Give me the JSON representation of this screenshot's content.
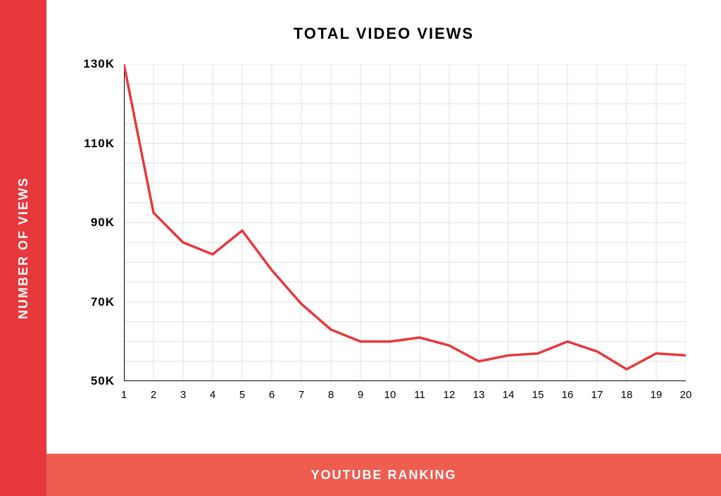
{
  "chart": {
    "type": "line",
    "title": "TOTAL VIDEO VIEWS",
    "title_fontsize": 22,
    "xlabel": "YOUTUBE RANKING",
    "ylabel": "NUMBER OF VIEWS",
    "label_fontsize": 18,
    "label_color": "#ffffff",
    "sidebar_color": "#e7383c",
    "bottombar_color": "#ef5c50",
    "background_color": "#ffffff",
    "grid_color": "#e0e0e0",
    "axis_color": "#000000",
    "axis_width": 2,
    "line_color": "#e7383c",
    "line_width": 3.5,
    "xlim": [
      1,
      20
    ],
    "ylim": [
      50,
      130
    ],
    "y_ticks": [
      50,
      70,
      90,
      110,
      130
    ],
    "y_tick_labels": [
      "50K",
      "70K",
      "90K",
      "110K",
      "130K"
    ],
    "x_ticks": [
      1,
      2,
      3,
      4,
      5,
      6,
      7,
      8,
      9,
      10,
      11,
      12,
      13,
      14,
      15,
      16,
      17,
      18,
      19,
      20
    ],
    "x_grid_step": 1,
    "y_grid_step": 5,
    "x_values": [
      1,
      2,
      3,
      4,
      5,
      6,
      7,
      8,
      9,
      10,
      11,
      12,
      13,
      14,
      15,
      16,
      17,
      18,
      19,
      20
    ],
    "y_values": [
      130,
      92.5,
      85,
      82,
      88,
      78,
      69.5,
      63,
      60,
      60,
      61,
      59,
      55,
      56.5,
      57,
      60,
      57.5,
      53,
      57,
      56.5
    ]
  }
}
